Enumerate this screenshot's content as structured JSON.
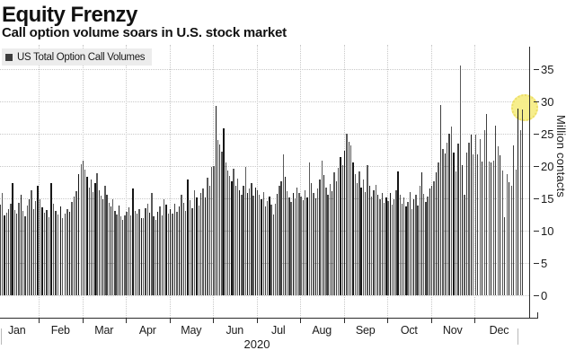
{
  "header": {
    "title": "Equity Frenzy",
    "subtitle": "Call option volume soars in U.S. stock market"
  },
  "legend": {
    "label": "US Total Option Call Volumes",
    "marker_color": "#3d3d3d"
  },
  "colors": {
    "bar_dark": "#161616",
    "bar_mid": "#3f3f3f",
    "bar_gray": "#5a5a5a",
    "grid": "#c8c8c8",
    "axis": "#2b2b2b",
    "highlight_fill": "#f7ee86",
    "highlight_edge": "#ecdc5e",
    "legend_bg": "#ececec"
  },
  "chart_data": {
    "type": "bar",
    "title": "US Total Option Call Volumes",
    "xlabel": "2020",
    "ylabel": "Million contacts",
    "ylim": [
      0,
      37
    ],
    "y_ticks": [
      0,
      5,
      10,
      15,
      20,
      25,
      30,
      35
    ],
    "grid": "dotted",
    "legend_position": "top-left",
    "highlight_note": "final trading days circled in yellow",
    "year_label": "2020",
    "months": [
      {
        "label": "Jan",
        "values": [
          13.5,
          12.0,
          14.0,
          15.8,
          12.4,
          12.8,
          13.3,
          14.1,
          17.3,
          13.2,
          12.7,
          14.3,
          15.6,
          13.0,
          12.2,
          13.9,
          14.8,
          16.2,
          13.4,
          14.6,
          17.0
        ]
      },
      {
        "label": "Feb",
        "values": [
          14.9,
          13.6,
          12.8,
          13.2,
          12.1,
          17.4,
          14.2,
          13.0,
          12.5,
          13.8,
          11.9,
          12.6,
          13.4,
          12.9,
          14.5,
          15.3,
          16.1,
          18.8,
          20.3
        ]
      },
      {
        "label": "Mar",
        "values": [
          20.8,
          19.5,
          18.3,
          16.6,
          17.9,
          16.0,
          17.3,
          18.9,
          16.2,
          15.4,
          14.8,
          16.9,
          15.6,
          14.3,
          13.7,
          14.9,
          13.1,
          12.5,
          13.9,
          12.2,
          11.6,
          12.4
        ]
      },
      {
        "label": "Apr",
        "values": [
          12.9,
          13.6,
          12.3,
          16.5,
          13.1,
          12.6,
          13.4,
          12.0,
          11.9,
          13.5,
          14.1,
          12.8,
          15.9,
          12.2,
          11.6,
          12.9,
          13.7,
          12.4,
          14.9,
          14.0,
          12.7
        ]
      },
      {
        "label": "May",
        "values": [
          13.3,
          12.6,
          14.1,
          12.9,
          13.7,
          15.6,
          14.3,
          13.1,
          17.9,
          14.7,
          13.5,
          16.3,
          15.1,
          13.9,
          15.8,
          16.5,
          15.2,
          18.2,
          16.9,
          19.8
        ]
      },
      {
        "label": "Jun",
        "values": [
          20.0,
          29.3,
          24.0,
          23.4,
          22.2,
          25.9,
          20.6,
          19.3,
          18.5,
          17.7,
          19.6,
          16.9,
          18.0,
          16.3,
          15.6,
          17.0,
          19.9,
          15.9,
          16.5,
          17.3,
          15.4,
          16.7
        ]
      },
      {
        "label": "Jul",
        "values": [
          16.3,
          15.5,
          14.9,
          16.0,
          13.7,
          14.6,
          15.3,
          14.0,
          12.5,
          14.2,
          15.7,
          16.9,
          17.6,
          21.8,
          18.4,
          16.1,
          15.2,
          14.5,
          15.9,
          15.0,
          16.6,
          15.8
        ]
      },
      {
        "label": "Aug",
        "values": [
          15.3,
          14.7,
          16.2,
          15.1,
          20.6,
          17.3,
          15.9,
          15.0,
          16.5,
          17.9,
          20.9,
          18.6,
          16.7,
          15.5,
          17.2,
          16.1,
          19.0,
          17.6,
          19.7,
          21.4,
          20.2
        ]
      },
      {
        "label": "Sep",
        "values": [
          22.4,
          25.0,
          23.8,
          23.2,
          20.5,
          18.7,
          17.4,
          19.2,
          16.6,
          17.9,
          16.0,
          20.2,
          16.9,
          15.3,
          16.2,
          17.1,
          15.6,
          14.8,
          15.9,
          14.3,
          15.1
        ]
      },
      {
        "label": "Oct",
        "values": [
          14.6,
          15.9,
          14.0,
          14.9,
          16.3,
          19.2,
          15.5,
          14.2,
          15.1,
          13.7,
          14.5,
          16.0,
          13.3,
          14.8,
          15.6,
          13.9,
          16.9,
          19.0,
          15.7,
          14.4,
          15.3,
          16.5
        ]
      },
      {
        "label": "Nov",
        "values": [
          16.9,
          17.6,
          19.0,
          20.5,
          29.4,
          22.7,
          21.9,
          23.6,
          25.0,
          26.1,
          22.1,
          19.1,
          23.5,
          35.6,
          20.2,
          15.6,
          22.1,
          23.6,
          24.9,
          21.8
        ]
      },
      {
        "label": "Dec",
        "values": [
          24.9,
          21.8,
          24.2,
          20.7,
          25.6,
          28.1,
          20.7,
          20.5,
          20.9,
          26.2,
          23.0,
          21.6,
          19.3,
          12.1,
          18.8,
          17.5,
          17.0,
          23.2,
          19.5,
          28.9,
          25.6,
          28.8
        ]
      }
    ]
  }
}
